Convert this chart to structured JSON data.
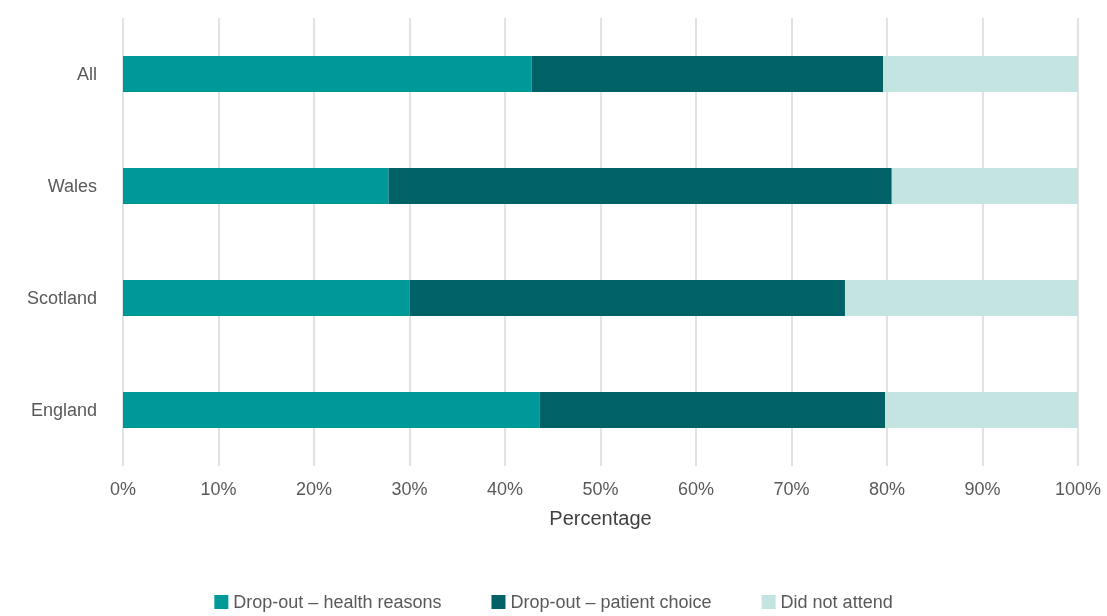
{
  "chart_data": {
    "type": "bar",
    "orientation": "horizontal",
    "stacked": true,
    "xlabel": "Percentage",
    "categories": [
      "All",
      "Wales",
      "Scotland",
      "England"
    ],
    "series": [
      {
        "name": "Drop-out – health reasons",
        "color": "#009999",
        "values": [
          42.8,
          27.8,
          30.0,
          43.6
        ]
      },
      {
        "name": "Drop-out – patient choice",
        "color": "#006167",
        "values": [
          36.8,
          52.7,
          45.6,
          36.2
        ]
      },
      {
        "name": "Did not attend",
        "color": "#c4e4e1",
        "values": [
          20.4,
          19.5,
          24.4,
          20.2
        ]
      }
    ],
    "xlim": [
      0,
      100
    ],
    "xticks": [
      {
        "value": 0,
        "label": "0%"
      },
      {
        "value": 10,
        "label": "10%"
      },
      {
        "value": 20,
        "label": "20%"
      },
      {
        "value": 30,
        "label": "30%"
      },
      {
        "value": 40,
        "label": "40%"
      },
      {
        "value": 50,
        "label": "50%"
      },
      {
        "value": 60,
        "label": "60%"
      },
      {
        "value": 70,
        "label": "70%"
      },
      {
        "value": 80,
        "label": "80%"
      },
      {
        "value": 90,
        "label": "90%"
      },
      {
        "value": 100,
        "label": "100%"
      }
    ],
    "grid": "x",
    "legend": "bottom"
  }
}
